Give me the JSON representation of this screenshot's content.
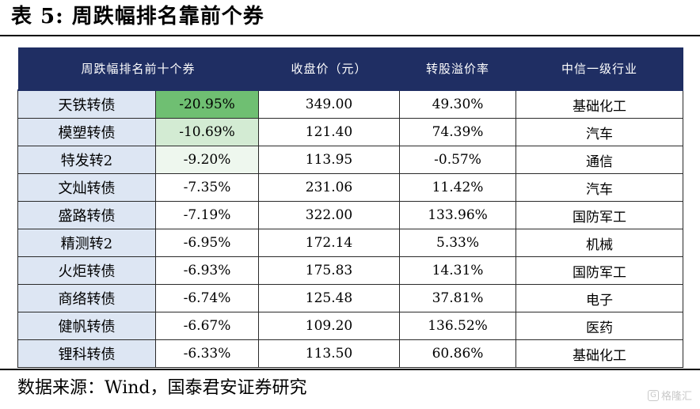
{
  "title": "表 5:  周跌幅排名靠前个券",
  "table": {
    "headers": [
      "周跌幅排名前十个券",
      "收盘价（元）",
      "转股溢价率",
      "中信一级行业"
    ],
    "rows": [
      {
        "name": "天铁转债",
        "change": "-20.95%",
        "close": "349.00",
        "premium": "49.30%",
        "industry": "基础化工"
      },
      {
        "name": "模塑转债",
        "change": "-10.69%",
        "close": "121.40",
        "premium": "74.39%",
        "industry": "汽车"
      },
      {
        "name": "特发转2",
        "change": "-9.20%",
        "close": "113.95",
        "premium": "-0.57%",
        "industry": "通信"
      },
      {
        "name": "文灿转债",
        "change": "-7.35%",
        "close": "231.06",
        "premium": "11.42%",
        "industry": "汽车"
      },
      {
        "name": "盛路转债",
        "change": "-7.19%",
        "close": "322.00",
        "premium": "133.96%",
        "industry": "国防军工"
      },
      {
        "name": "精测转2",
        "change": "-6.95%",
        "close": "172.14",
        "premium": "5.33%",
        "industry": "机械"
      },
      {
        "name": "火炬转债",
        "change": "-6.93%",
        "close": "175.83",
        "premium": "14.31%",
        "industry": "国防军工"
      },
      {
        "name": "商络转债",
        "change": "-6.74%",
        "close": "125.48",
        "premium": "37.81%",
        "industry": "电子"
      },
      {
        "name": "健帆转债",
        "change": "-6.67%",
        "close": "109.20",
        "premium": "136.52%",
        "industry": "医药"
      },
      {
        "name": "锂科转债",
        "change": "-6.33%",
        "close": "113.50",
        "premium": "60.86%",
        "industry": "基础化工"
      }
    ]
  },
  "source": "数据来源：Wind，国泰君安证券研究",
  "watermark": {
    "mark": "G",
    "text": "格隆汇"
  },
  "colors": {
    "header_bg": "#1f2e63",
    "name_cell_bg": "#dde6f3",
    "change_strong": "#6fbf72",
    "change_medium": "#d3ebd3",
    "change_light": "#eef7ee"
  }
}
